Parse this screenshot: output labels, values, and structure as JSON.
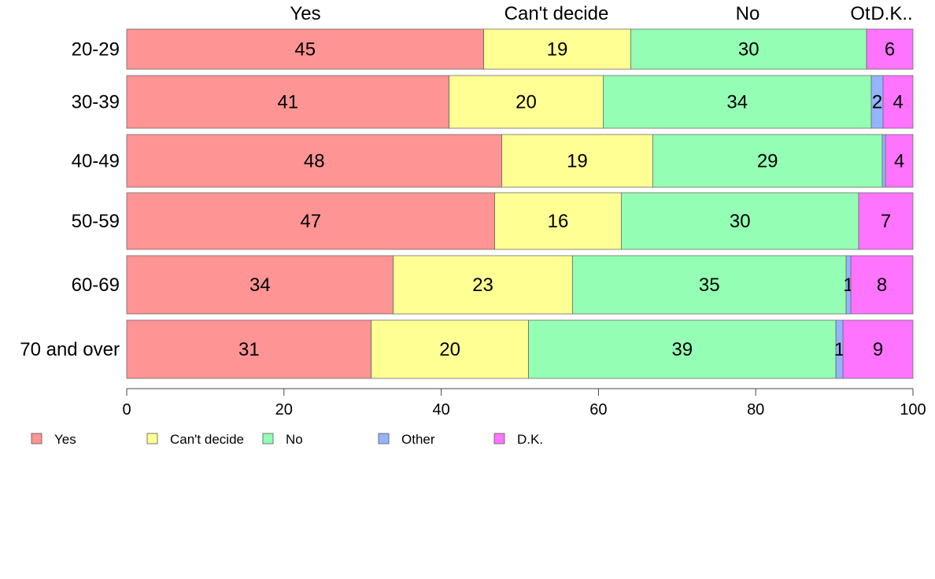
{
  "chart_data": {
    "type": "bar",
    "orientation": "horizontal",
    "stacked": true,
    "categories": [
      "20-29",
      "30-39",
      "40-49",
      "50-59",
      "60-69",
      "70 and over"
    ],
    "series": [
      {
        "name": "Yes",
        "color": "#ff9494",
        "values": [
          45.4,
          41.0,
          47.7,
          46.8,
          33.9,
          31.1
        ],
        "labels": [
          "45",
          "41",
          "48",
          "47",
          "34",
          "31"
        ]
      },
      {
        "name": "Can't decide",
        "color": "#ffff94",
        "values": [
          18.7,
          19.6,
          19.2,
          16.1,
          22.8,
          20.0
        ],
        "labels": [
          "19",
          "20",
          "19",
          "16",
          "23",
          "20"
        ]
      },
      {
        "name": "No",
        "color": "#94ffb4",
        "values": [
          30.0,
          34.1,
          29.2,
          30.2,
          34.8,
          39.1
        ],
        "labels": [
          "30",
          "34",
          "29",
          "30",
          "35",
          "39"
        ]
      },
      {
        "name": "Other",
        "color": "#94b4ff",
        "values": [
          0,
          1.5,
          0.4,
          0,
          0.6,
          0.9
        ],
        "labels": [
          "",
          "2",
          "",
          "",
          "1",
          "1"
        ]
      },
      {
        "name": "D.K.",
        "color": "#ff74ff",
        "values": [
          5.9,
          3.8,
          3.5,
          6.9,
          7.9,
          8.9
        ],
        "labels": [
          "6",
          "4",
          "4",
          "7",
          "8",
          "9"
        ]
      }
    ],
    "top_labels": [
      "Yes",
      "Can't decide",
      "No",
      "Ot",
      "D.K.."
    ],
    "xlim": [
      0,
      100
    ],
    "xticks": [
      "0",
      "20",
      "40",
      "60",
      "80",
      "100"
    ],
    "legend": [
      "Yes",
      "Can't decide",
      "No",
      "Other",
      "D.K."
    ],
    "legend_position": "bottom-left",
    "grid": false,
    "title": "",
    "xlabel": "",
    "ylabel": ""
  }
}
